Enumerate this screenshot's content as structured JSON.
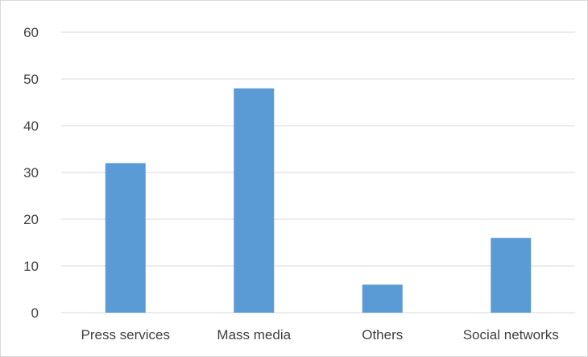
{
  "chart_data": {
    "type": "bar",
    "categories": [
      "Press services",
      "Mass media",
      "Others",
      "Social networks"
    ],
    "values": [
      32,
      48,
      6,
      16
    ],
    "ylim": [
      0,
      60
    ],
    "yticks": [
      0,
      10,
      20,
      30,
      40,
      50,
      60
    ],
    "grid": true,
    "legend": "none",
    "colors": {
      "bar": "#5b9bd5",
      "grid": "#d9d9d9",
      "axis_text": "#404040"
    }
  }
}
